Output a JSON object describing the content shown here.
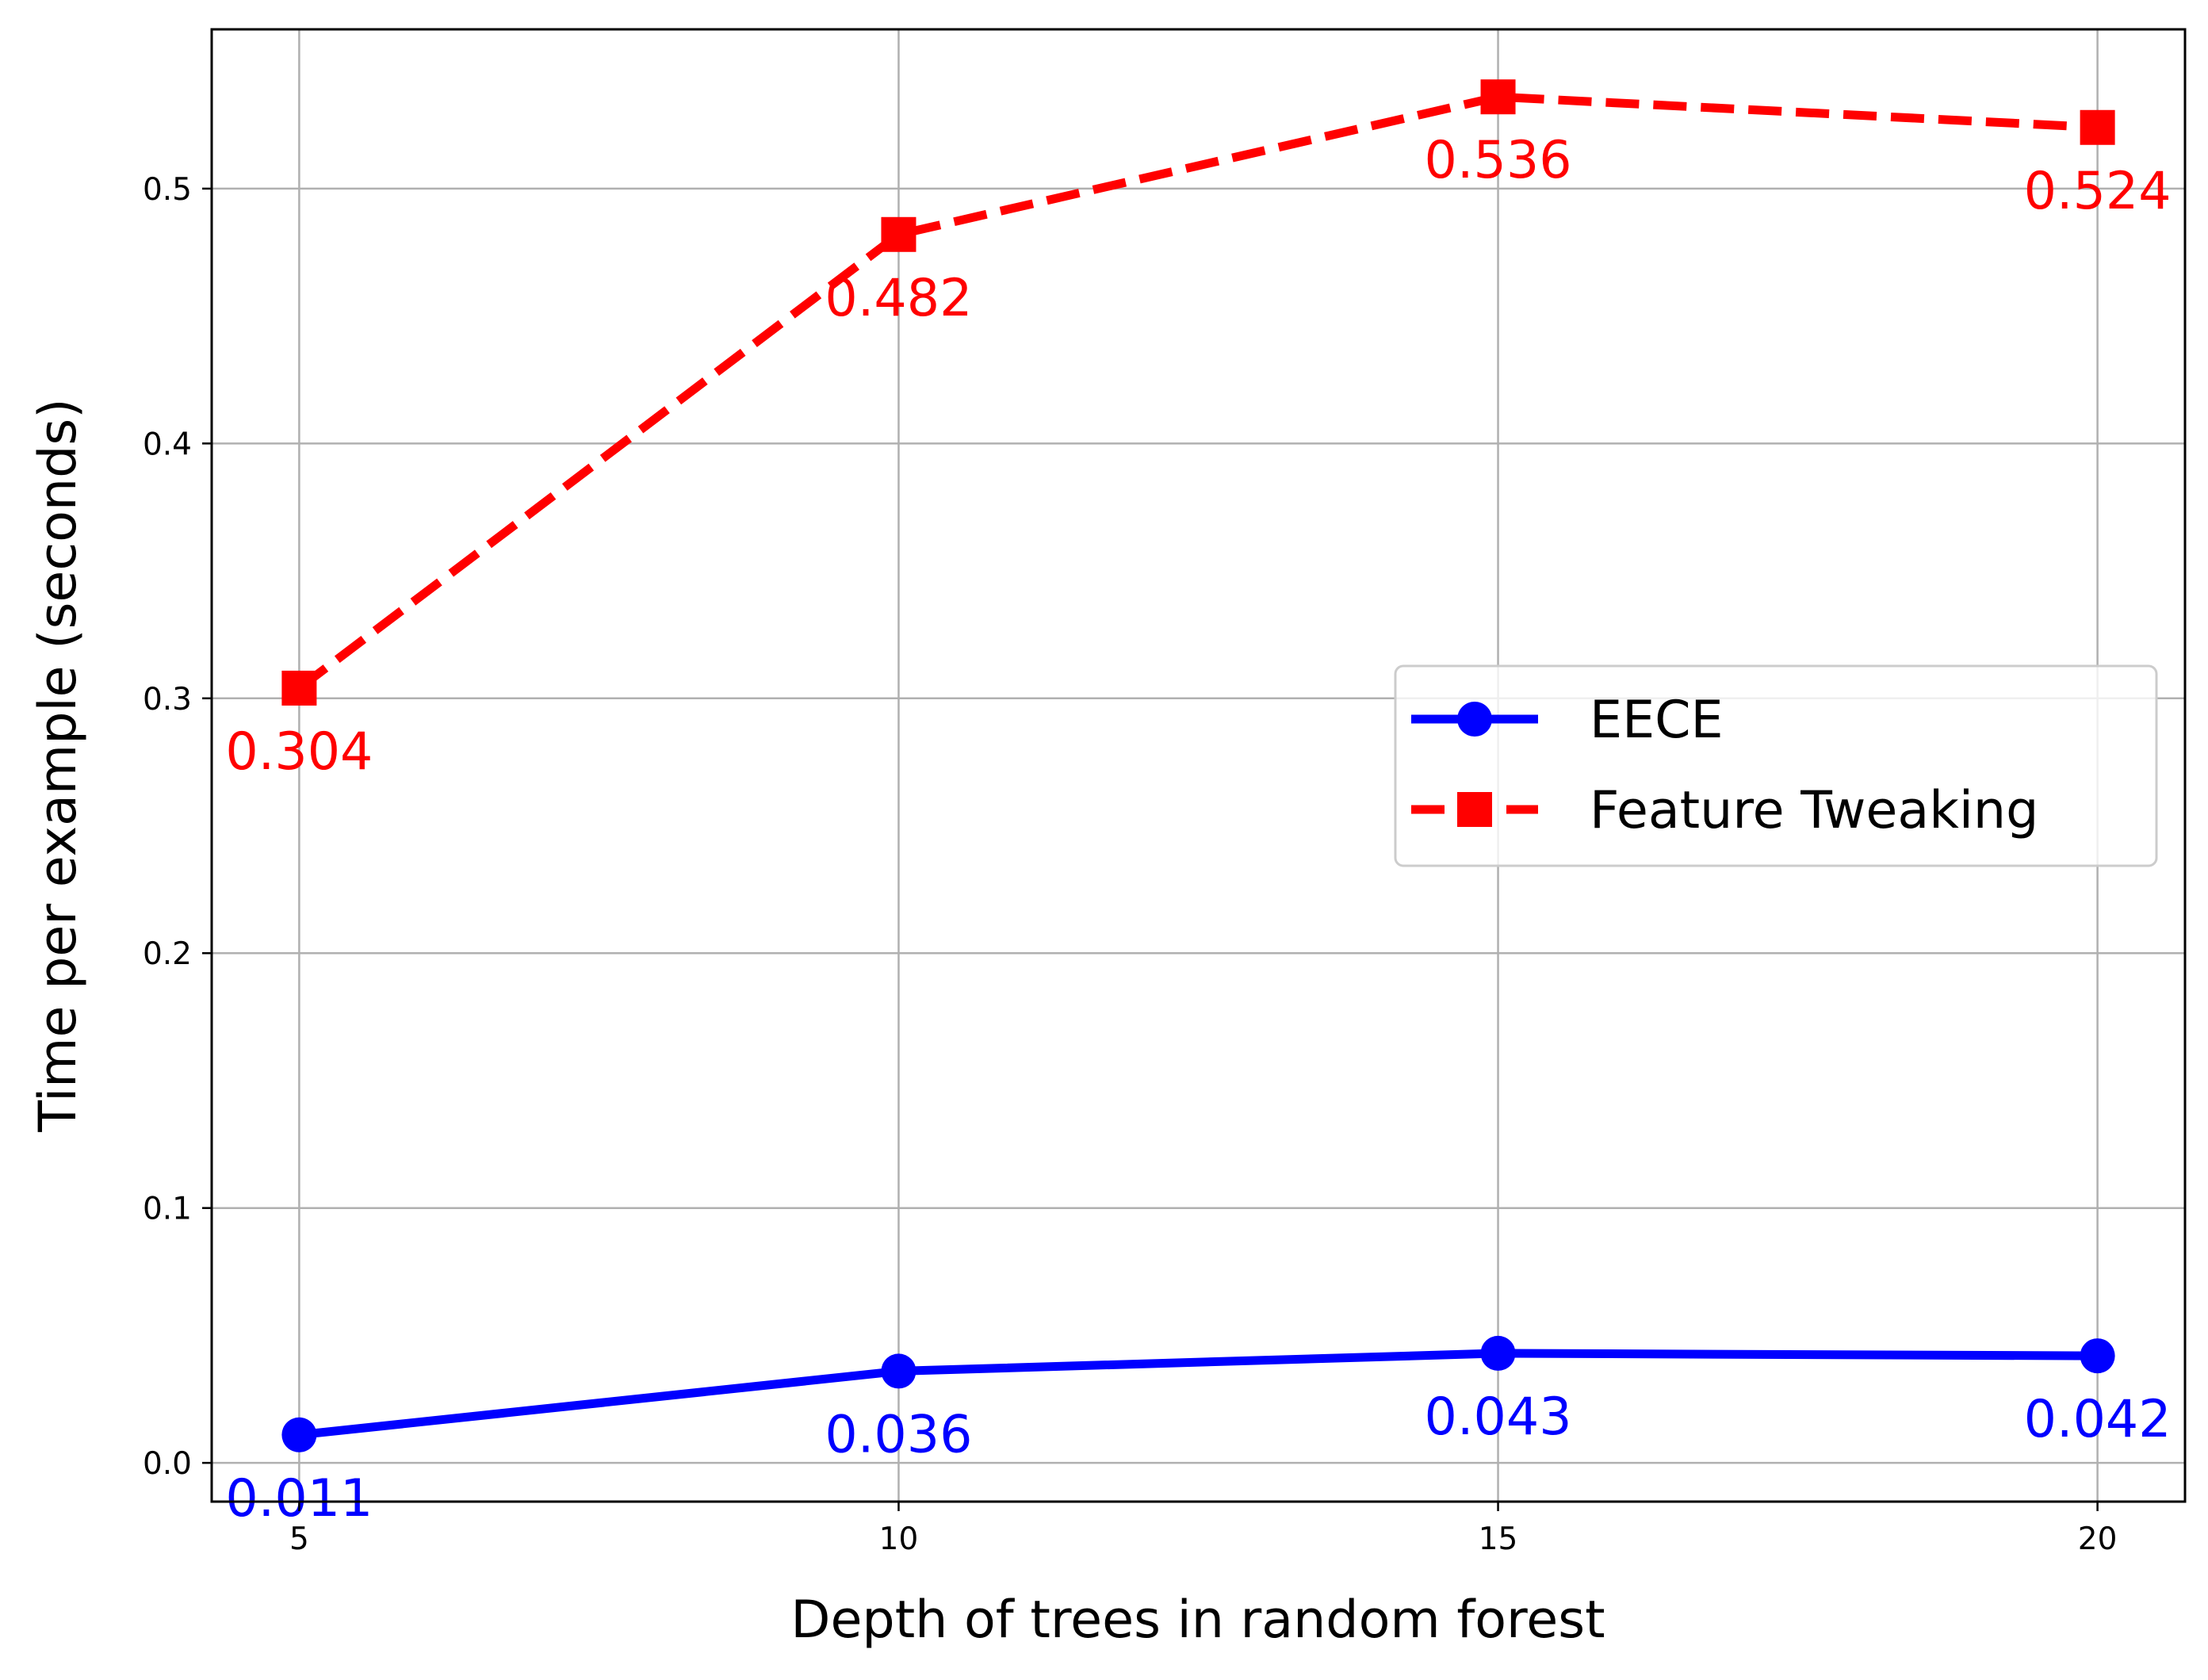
{
  "chart_data": {
    "type": "line",
    "title": "",
    "xlabel": "Depth of trees in random forest",
    "ylabel": "Time per example (seconds)",
    "x": [
      5,
      10,
      15,
      20
    ],
    "x_ticks": [
      "5",
      "10",
      "15",
      "20"
    ],
    "y_ticks": [
      "0.0",
      "0.1",
      "0.2",
      "0.3",
      "0.4",
      "0.5"
    ],
    "xlim": [
      4.27,
      20.73
    ],
    "ylim": [
      -0.0152,
      0.5625
    ],
    "grid": true,
    "legend_position": "center-right",
    "series": [
      {
        "name": "EECE",
        "values": [
          0.011,
          0.036,
          0.043,
          0.042
        ],
        "labels": [
          "0.011",
          "0.036",
          "0.043",
          "0.042"
        ],
        "color": "#0000ff",
        "line_style": "solid",
        "marker": "circle"
      },
      {
        "name": "Feature Tweaking",
        "values": [
          0.304,
          0.482,
          0.536,
          0.524
        ],
        "labels": [
          "0.304",
          "0.482",
          "0.536",
          "0.524"
        ],
        "color": "#ff0000",
        "line_style": "dashed",
        "marker": "square"
      }
    ]
  }
}
